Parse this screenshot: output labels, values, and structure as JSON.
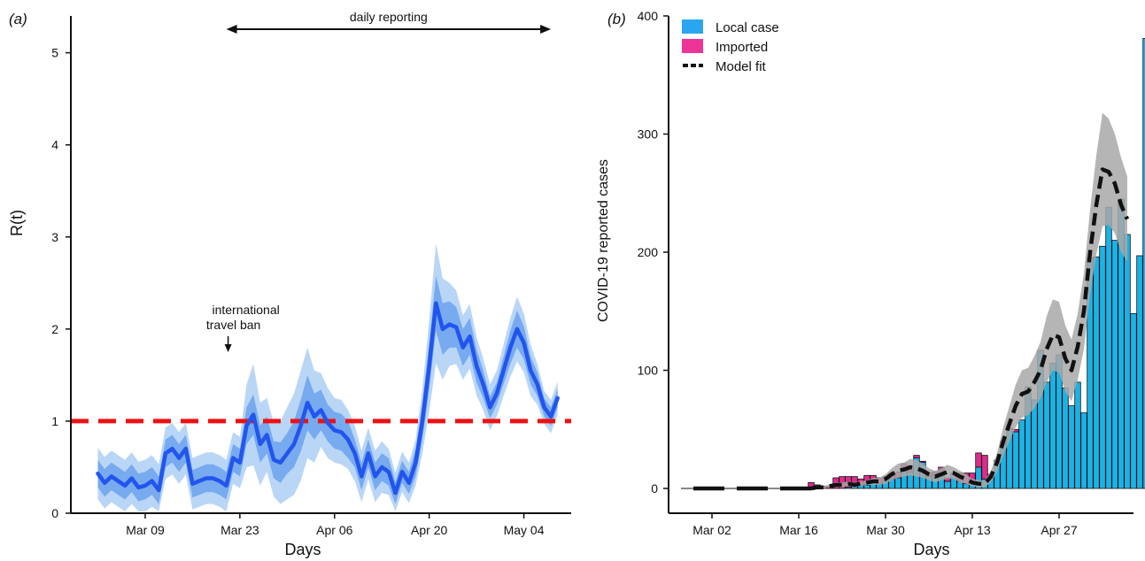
{
  "chart_data": [
    {
      "type": "line",
      "panel_label": "(a)",
      "xlabel": "Days",
      "ylabel": "R(t)",
      "ylim": [
        0,
        5.4
      ],
      "yticks": [
        0,
        1,
        2,
        3,
        4,
        5
      ],
      "xticks": [
        {
          "label": "Mar 09",
          "x": "2020-03-09"
        },
        {
          "label": "Mar 23",
          "x": "2020-03-23"
        },
        {
          "label": "Apr 06",
          "x": "2020-04-06"
        },
        {
          "label": "Apr 20",
          "x": "2020-04-20"
        },
        {
          "label": "May 04",
          "x": "2020-05-04"
        }
      ],
      "xlim": [
        "2020-02-27",
        "2020-05-11"
      ],
      "reference_line": {
        "y": 1,
        "color": "#ee1111",
        "style": "dashed"
      },
      "annotations": [
        {
          "text_lines": [
            "international",
            "travel ban"
          ],
          "x": "2020-03-21"
        },
        {
          "text": "daily reporting",
          "x_from": "2020-03-21",
          "x_to": "2020-05-08"
        }
      ],
      "colors": {
        "line": "#2255ee",
        "inner_band": "#77aaee",
        "outer_band": "#b9d6f7"
      },
      "series": [
        {
          "start_date": "2020-03-02",
          "values": [
            0.43,
            0.33,
            0.4,
            0.35,
            0.3,
            0.38,
            0.28,
            0.3,
            0.35,
            0.25,
            0.65,
            0.7,
            0.6,
            0.7,
            0.32,
            0.35,
            0.38,
            0.38,
            0.35,
            0.3,
            0.6,
            0.55,
            0.95,
            1.07,
            0.75,
            0.85,
            0.58,
            0.55,
            0.65,
            0.75,
            0.95,
            1.2,
            1.05,
            1.12,
            0.98,
            0.9,
            0.88,
            0.8,
            0.65,
            0.4,
            0.65,
            0.4,
            0.5,
            0.45,
            0.22,
            0.45,
            0.33,
            0.55,
            1.0,
            1.6,
            2.28,
            2.0,
            2.05,
            2.02,
            1.8,
            1.92,
            1.6,
            1.4,
            1.15,
            1.3,
            1.55,
            1.8,
            2.0,
            1.85,
            1.55,
            1.4,
            1.15,
            1.05,
            1.25
          ],
          "inner_band_halfwidth": [
            0.15,
            0.15,
            0.15,
            0.15,
            0.15,
            0.15,
            0.15,
            0.15,
            0.15,
            0.15,
            0.15,
            0.15,
            0.15,
            0.15,
            0.15,
            0.15,
            0.15,
            0.15,
            0.15,
            0.15,
            0.15,
            0.15,
            0.2,
            0.22,
            0.2,
            0.2,
            0.2,
            0.22,
            0.22,
            0.25,
            0.28,
            0.3,
            0.25,
            0.22,
            0.2,
            0.2,
            0.2,
            0.2,
            0.15,
            0.15,
            0.15,
            0.15,
            0.15,
            0.15,
            0.12,
            0.12,
            0.12,
            0.15,
            0.2,
            0.25,
            0.3,
            0.28,
            0.25,
            0.22,
            0.2,
            0.2,
            0.18,
            0.15,
            0.12,
            0.12,
            0.15,
            0.18,
            0.2,
            0.18,
            0.15,
            0.13,
            0.1,
            0.1,
            0.1
          ],
          "outer_band_halfwidth": [
            0.28,
            0.28,
            0.28,
            0.28,
            0.28,
            0.28,
            0.28,
            0.28,
            0.28,
            0.28,
            0.28,
            0.28,
            0.28,
            0.28,
            0.28,
            0.28,
            0.28,
            0.28,
            0.28,
            0.28,
            0.28,
            0.28,
            0.45,
            0.55,
            0.45,
            0.4,
            0.4,
            0.45,
            0.5,
            0.55,
            0.6,
            0.6,
            0.5,
            0.4,
            0.38,
            0.35,
            0.35,
            0.32,
            0.3,
            0.28,
            0.28,
            0.28,
            0.28,
            0.25,
            0.22,
            0.22,
            0.22,
            0.25,
            0.35,
            0.5,
            0.65,
            0.55,
            0.45,
            0.4,
            0.35,
            0.35,
            0.32,
            0.28,
            0.25,
            0.25,
            0.28,
            0.32,
            0.35,
            0.32,
            0.28,
            0.22,
            0.18,
            0.18,
            0.18
          ]
        }
      ]
    },
    {
      "type": "bar",
      "panel_label": "(b)",
      "xlabel": "Days",
      "ylabel": "COVID-19 reported cases",
      "ylim": [
        0,
        400
      ],
      "yticks": [
        0,
        100,
        200,
        300,
        400
      ],
      "xticks": [
        {
          "label": "Mar 02",
          "x": "2020-03-02"
        },
        {
          "label": "Mar 16",
          "x": "2020-03-16"
        },
        {
          "label": "Mar 30",
          "x": "2020-03-30"
        },
        {
          "label": "Apr 13",
          "x": "2020-04-13"
        },
        {
          "label": "Apr 27",
          "x": "2020-04-27"
        }
      ],
      "xlim": [
        "2020-02-24",
        "2020-05-09"
      ],
      "legend": {
        "position": "top-left",
        "items": [
          {
            "label": "Local case",
            "color": "#2aa6f0",
            "kind": "box"
          },
          {
            "label": "Imported",
            "color": "#ee3399",
            "kind": "box"
          },
          {
            "label": "Model fit",
            "color": "#111111",
            "kind": "dashed-line"
          }
        ]
      },
      "colors": {
        "local": "#1bb3e6",
        "imported": "#e02a8c",
        "fit": "#111111",
        "fit_band": "#a8a8a8"
      },
      "bars_start_date": "2020-03-18",
      "local": [
        0,
        0,
        0,
        0,
        0,
        0,
        1,
        2,
        3,
        3,
        5,
        4,
        6,
        8,
        9,
        18,
        14,
        26,
        22,
        10,
        10,
        15,
        6,
        12,
        6,
        4,
        5,
        18,
        8,
        10,
        22,
        38,
        50,
        48,
        58,
        86,
        75,
        117,
        90,
        106,
        113,
        85,
        70,
        90,
        64,
        195,
        196,
        205,
        238,
        210,
        245,
        215,
        148,
        197,
        381
      ],
      "imported": [
        5,
        3,
        2,
        2,
        9,
        10,
        9,
        8,
        5,
        8,
        6,
        5,
        4,
        5,
        5,
        3,
        5,
        2,
        1,
        3,
        4,
        3,
        3,
        1,
        7,
        9,
        8,
        12,
        20,
        2,
        2,
        2,
        1,
        2,
        0,
        0,
        0,
        0,
        0,
        0,
        0,
        0,
        0,
        0,
        0,
        0,
        0,
        0,
        0,
        0,
        0,
        0,
        0,
        0,
        0
      ],
      "fit_dashed_segments": [
        [
          "2020-02-28",
          "2020-03-04"
        ],
        [
          "2020-03-06",
          "2020-03-11"
        ],
        [
          "2020-03-13",
          "2020-03-18"
        ]
      ],
      "fit_start_date": "2020-03-18",
      "fit": [
        0,
        1,
        1,
        2,
        3,
        3,
        4,
        3,
        4,
        5,
        6,
        6,
        8,
        12,
        15,
        16,
        18,
        17,
        15,
        12,
        10,
        12,
        14,
        13,
        10,
        8,
        5,
        4,
        4,
        10,
        22,
        40,
        55,
        70,
        80,
        82,
        90,
        100,
        118,
        130,
        128,
        110,
        100,
        120,
        150,
        200,
        240,
        270,
        268,
        258,
        240,
        228
      ],
      "fit_band_halfwidth": [
        0,
        1,
        1,
        1,
        2,
        2,
        2,
        2,
        2,
        2,
        3,
        3,
        4,
        5,
        6,
        6,
        7,
        7,
        6,
        5,
        5,
        5,
        6,
        5,
        5,
        4,
        3,
        3,
        3,
        5,
        8,
        12,
        15,
        18,
        20,
        20,
        22,
        24,
        28,
        30,
        30,
        28,
        26,
        28,
        32,
        36,
        42,
        48,
        45,
        42,
        40,
        36
      ]
    }
  ]
}
